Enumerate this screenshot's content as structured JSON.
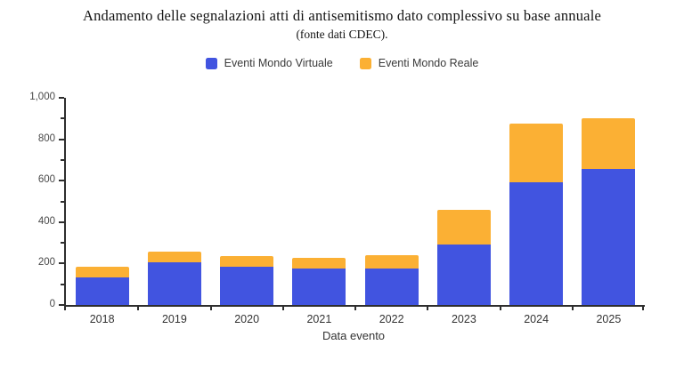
{
  "title": "Andamento delle segnalazioni atti di antisemitismo dato complessivo su base annuale",
  "subtitle": "(fonte dati CDEC).",
  "colors": {
    "virtuale": "#4154e0",
    "reale": "#fbb034",
    "axis": "#2e2e2e"
  },
  "legend": {
    "items": [
      {
        "key": "virtuale",
        "label": "Eventi Mondo Virtuale",
        "color": "#4154e0"
      },
      {
        "key": "reale",
        "label": "Eventi Mondo Reale",
        "color": "#fbb034"
      }
    ]
  },
  "chart_data": {
    "type": "bar",
    "stacked": true,
    "title": "Andamento delle segnalazioni atti di antisemitismo dato complessivo su base annuale (fonte dati CDEC).",
    "xlabel": "Data evento",
    "ylabel": "",
    "categories": [
      "2018",
      "2019",
      "2020",
      "2021",
      "2022",
      "2023",
      "2024",
      "2025"
    ],
    "series": [
      {
        "key": "virtuale",
        "name": "Eventi Mondo Virtuale",
        "color": "#4154e0",
        "values": [
          135,
          204,
          184,
          175,
          178,
          291,
          593,
          656
        ]
      },
      {
        "key": "reale",
        "name": "Eventi Mondo Reale",
        "color": "#fbb034",
        "values": [
          48,
          52,
          53,
          51,
          63,
          167,
          283,
          247
        ]
      }
    ],
    "totals": [
      183,
      256,
      237,
      226,
      241,
      458,
      876,
      903
    ],
    "ylim": [
      0,
      1000
    ],
    "y_ticks": [
      0,
      200,
      400,
      600,
      800,
      1000
    ],
    "y_tick_labels": [
      "0",
      "200",
      "400",
      "600",
      "800",
      "1,000"
    ],
    "y_minor_tick_interval": 100,
    "grid": false,
    "legend_position": "top"
  }
}
